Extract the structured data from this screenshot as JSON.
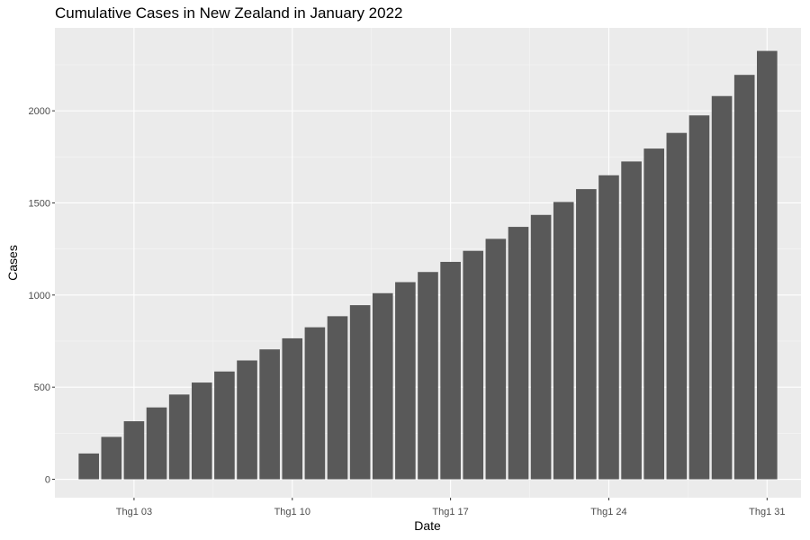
{
  "chart_data": {
    "type": "bar",
    "title": "Cumulative Cases in New Zealand in January 2022",
    "xlabel": "Date",
    "ylabel": "Cases",
    "x": [
      "2022-01-01",
      "2022-01-02",
      "2022-01-03",
      "2022-01-04",
      "2022-01-05",
      "2022-01-06",
      "2022-01-07",
      "2022-01-08",
      "2022-01-09",
      "2022-01-10",
      "2022-01-11",
      "2022-01-12",
      "2022-01-13",
      "2022-01-14",
      "2022-01-15",
      "2022-01-16",
      "2022-01-17",
      "2022-01-18",
      "2022-01-19",
      "2022-01-20",
      "2022-01-21",
      "2022-01-22",
      "2022-01-23",
      "2022-01-24",
      "2022-01-25",
      "2022-01-26",
      "2022-01-27",
      "2022-01-28",
      "2022-01-29",
      "2022-01-30",
      "2022-01-31"
    ],
    "values": [
      140,
      230,
      315,
      390,
      460,
      525,
      585,
      645,
      705,
      765,
      825,
      885,
      945,
      1010,
      1070,
      1125,
      1180,
      1240,
      1305,
      1370,
      1435,
      1505,
      1575,
      1650,
      1725,
      1795,
      1880,
      1975,
      2080,
      2195,
      2325
    ],
    "xticks": [
      {
        "date": "2022-01-03",
        "label": "Thg1 03"
      },
      {
        "date": "2022-01-10",
        "label": "Thg1 10"
      },
      {
        "date": "2022-01-17",
        "label": "Thg1 17"
      },
      {
        "date": "2022-01-24",
        "label": "Thg1 24"
      },
      {
        "date": "2022-01-31",
        "label": "Thg1 31"
      }
    ],
    "yticks": [
      0,
      500,
      1000,
      1500,
      2000
    ],
    "ylim": [
      -100,
      2450
    ],
    "xlim": [
      "2021-12-30T12:00",
      "2022-02-01T12:00"
    ],
    "grid": true,
    "legend": "none",
    "colors": {
      "bar": "#595959",
      "panel": "#ebebeb",
      "grid_major": "#ffffff",
      "grid_minor": "#f5f5f5",
      "text": "#4d4d4d"
    }
  }
}
